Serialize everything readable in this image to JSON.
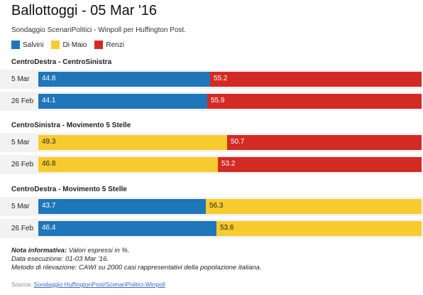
{
  "chart_data": {
    "type": "bar",
    "stacked": true,
    "orientation": "horizontal",
    "title": "Ballottoggi - 05 Mar '16",
    "subtitle": "Sondaggio ScenariPolitici - Winpoll per Huffington Post.",
    "legend_position": "top-left",
    "legend": [
      {
        "name": "Salvini",
        "color": "#1f76b9"
      },
      {
        "name": "Di Maio",
        "color": "#f7cb2e"
      },
      {
        "name": "Renzi",
        "color": "#d42a24"
      }
    ],
    "xlim": [
      0,
      100
    ],
    "groups": [
      {
        "title": "CentroDestra - CentroSinistra",
        "rows": [
          {
            "label": "5 Mar",
            "segments": [
              {
                "name": "Salvini",
                "value": 44.8,
                "color": "#1f76b9"
              },
              {
                "name": "Renzi",
                "value": 55.2,
                "color": "#d42a24"
              }
            ]
          },
          {
            "label": "26 Feb",
            "segments": [
              {
                "name": "Salvini",
                "value": 44.1,
                "color": "#1f76b9"
              },
              {
                "name": "Renzi",
                "value": 55.9,
                "color": "#d42a24"
              }
            ]
          }
        ]
      },
      {
        "title": "CentroSinistra - Movimento 5 Stelle",
        "rows": [
          {
            "label": "5 Mar",
            "segments": [
              {
                "name": "Di Maio",
                "value": 49.3,
                "color": "#f7cb2e"
              },
              {
                "name": "Renzi",
                "value": 50.7,
                "color": "#d42a24"
              }
            ]
          },
          {
            "label": "26 Feb",
            "segments": [
              {
                "name": "Di Maio",
                "value": 46.8,
                "color": "#f7cb2e"
              },
              {
                "name": "Renzi",
                "value": 53.2,
                "color": "#d42a24"
              }
            ]
          }
        ]
      },
      {
        "title": "CentroDestra - Movimento 5 Stelle",
        "rows": [
          {
            "label": "5 Mar",
            "segments": [
              {
                "name": "Salvini",
                "value": 43.7,
                "color": "#1f76b9"
              },
              {
                "name": "Di Maio",
                "value": 56.3,
                "color": "#f7cb2e"
              }
            ]
          },
          {
            "label": "26 Feb",
            "segments": [
              {
                "name": "Salvini",
                "value": 46.4,
                "color": "#1f76b9"
              },
              {
                "name": "Di Maio",
                "value": 53.6,
                "color": "#f7cb2e"
              }
            ]
          }
        ]
      }
    ]
  },
  "notes": {
    "label": "Nota informativa:",
    "line1": " Valori espressi in %.",
    "line2": "Data esecuzione: 01-03 Mar '16.",
    "line3": "Metodo di rilevazione: CAWI su 2000 casi rappresentativi della popolazione italiana."
  },
  "source": {
    "label": "Source:",
    "link_text": "Sondaggio HuffingtonPost/ScenariPolitici-Winpoll"
  }
}
